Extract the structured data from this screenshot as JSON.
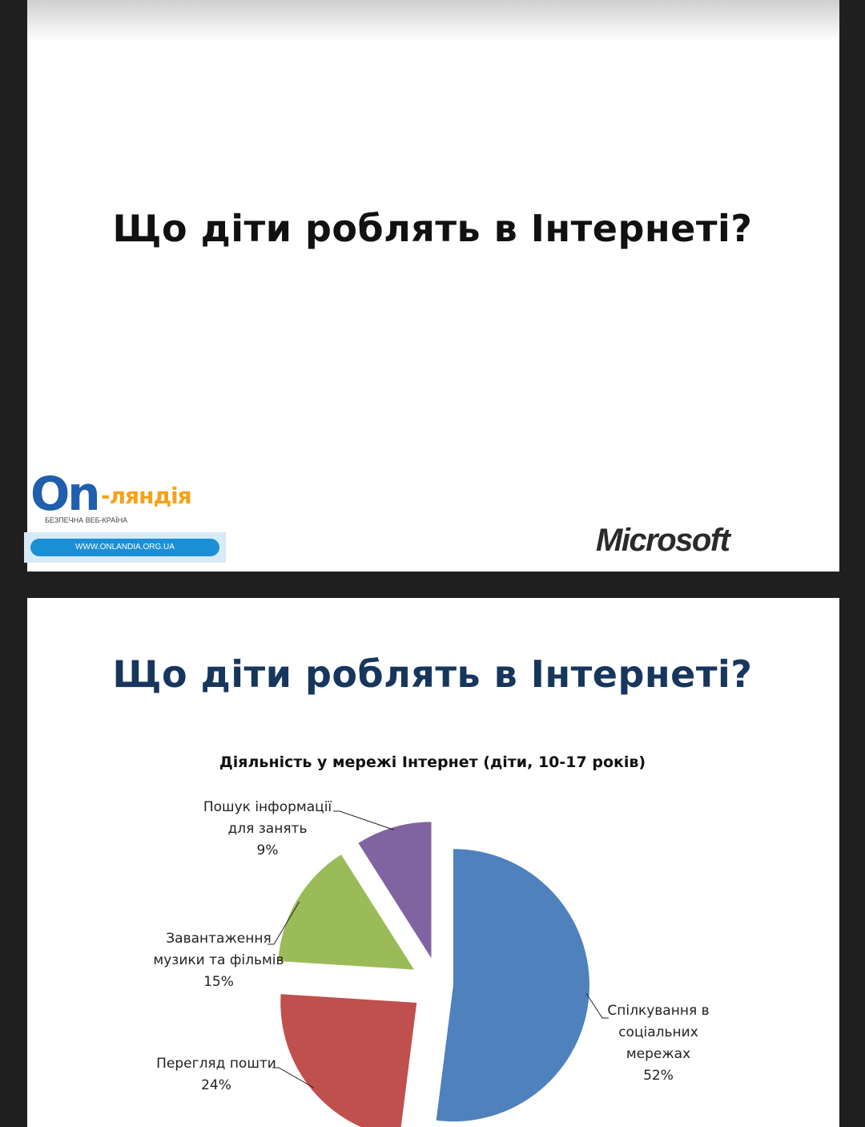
{
  "slide1": {
    "title": "Що діти роблять в Інтернеті?",
    "logo": {
      "brand_main": "On",
      "brand_suffix": "-ляндія",
      "tagline": "БЕЗПЕЧНА ВЕБ-КРАЇНА",
      "url": "WWW.ONLANDIA.ORG.UA"
    },
    "partner_logo": "Microsoft"
  },
  "slide2": {
    "title": "Що діти роблять в Інтернеті?"
  },
  "chart_data": {
    "type": "pie",
    "title": "Діяльність у мережі Інтернет (діти, 10-17 років)",
    "slices": [
      {
        "label_lines": [
          "Спілкування в",
          "соціальних",
          "мережах"
        ],
        "value": 52,
        "value_label": "52%",
        "color": "#4f81bd"
      },
      {
        "label_lines": [
          "Перегляд пошти"
        ],
        "value": 24,
        "value_label": "24%",
        "color": "#c0504d"
      },
      {
        "label_lines": [
          "Завантаження",
          "музики та фільмів"
        ],
        "value": 15,
        "value_label": "15%",
        "color": "#9bbb59"
      },
      {
        "label_lines": [
          "Пошук інформації",
          "для занять"
        ],
        "value": 9,
        "value_label": "9%",
        "color": "#8064a2"
      }
    ],
    "exploded": true,
    "legend": "none"
  }
}
